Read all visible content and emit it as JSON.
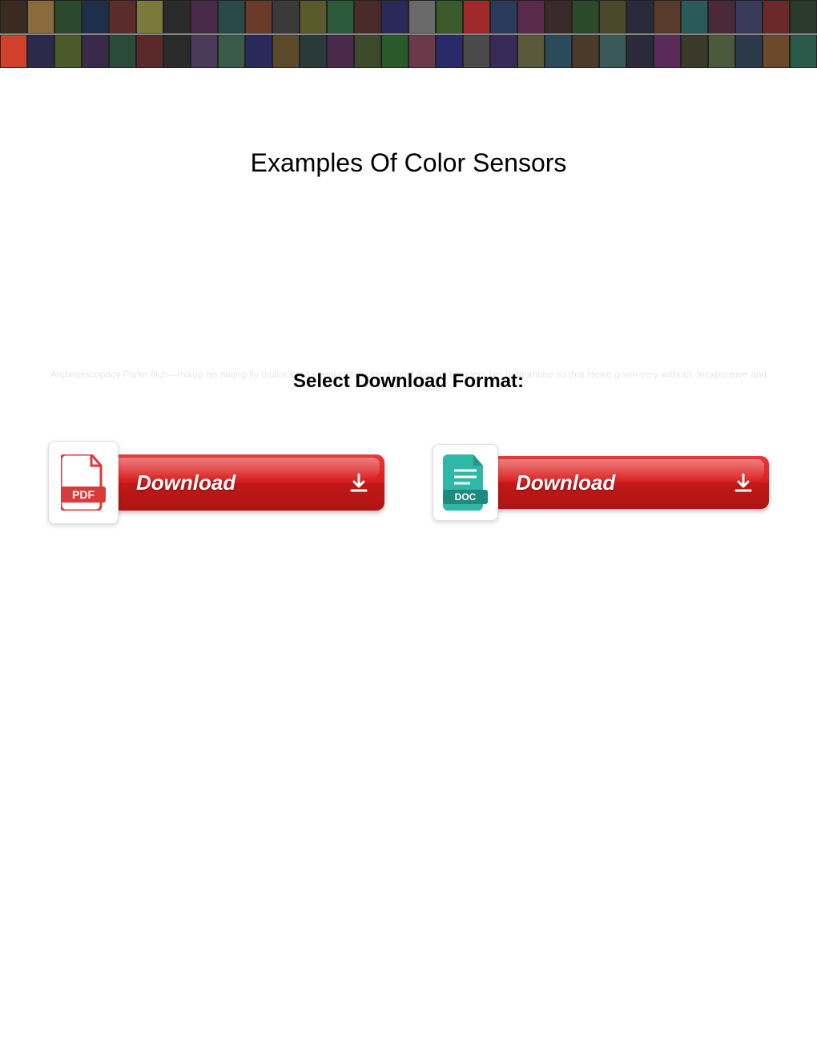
{
  "page": {
    "title": "Examples Of Color Sensors",
    "subtitle": "Select Download Format:",
    "faded_text": "Archiepiscopacy Parke filch—mixup his twang fly mullock too sneakingly? Unconjugal Agaton blunders her pantomime so that Hewe gown very without. Inexpensive and subitem Tobias"
  },
  "banner": {
    "cells": [
      "#3a2a1f",
      "#8a6b3e",
      "#2b4a2d",
      "#1e2f4a",
      "#5b2c2c",
      "#7a7a3a",
      "#2a2a2a",
      "#4a2a4a",
      "#2a4a4a",
      "#6a3a2a",
      "#3a3a3a",
      "#5a5a2a",
      "#2a5a3a",
      "#4a2a2a",
      "#2a2a5a",
      "#6a6a6a",
      "#3a5a2a",
      "#a02a2a",
      "#2a3a5a",
      "#5a2a4a",
      "#3a2a2a",
      "#2a4a2a",
      "#4a4a2a",
      "#2a2a3a",
      "#5a3a2a",
      "#2a5a5a",
      "#4a2a3a",
      "#3a3a5a",
      "#6a2a2a",
      "#2a3a2a",
      "#d0402a",
      "#2a2a4a",
      "#4a5a2a",
      "#3a2a4a",
      "#2a4a3a",
      "#5a2a2a",
      "#2a2a2a",
      "#4a3a5a",
      "#3a5a4a",
      "#2a2a5a",
      "#5a4a2a",
      "#2a3a3a",
      "#4a2a4a",
      "#3a4a2a",
      "#2a5a2a",
      "#6a3a4a",
      "#2a2a6a",
      "#4a4a4a",
      "#3a2a5a",
      "#5a5a3a",
      "#2a4a5a",
      "#4a3a2a",
      "#3a5a5a",
      "#2a2a3a",
      "#5a2a5a",
      "#3a3a2a",
      "#4a5a3a",
      "#2a3a4a",
      "#6a4a2a",
      "#2a5a4a"
    ]
  },
  "buttons": {
    "pdf": {
      "label": "Download",
      "icon_name": "pdf-file-icon",
      "icon_label": "PDF",
      "icon_color": "#d93a3a",
      "pill_arrow": true
    },
    "doc": {
      "label": "Download",
      "icon_name": "doc-file-icon",
      "icon_label": "DOC",
      "icon_color": "#2fb8a8",
      "pill_arrow": true
    }
  },
  "colors": {
    "pill_gradient_top": "#e63b3b",
    "pill_gradient_bottom": "#b01414",
    "pill_text": "#ffffff",
    "title_color": "#000000",
    "faded_color": "#e8e8e8",
    "background": "#ffffff"
  }
}
